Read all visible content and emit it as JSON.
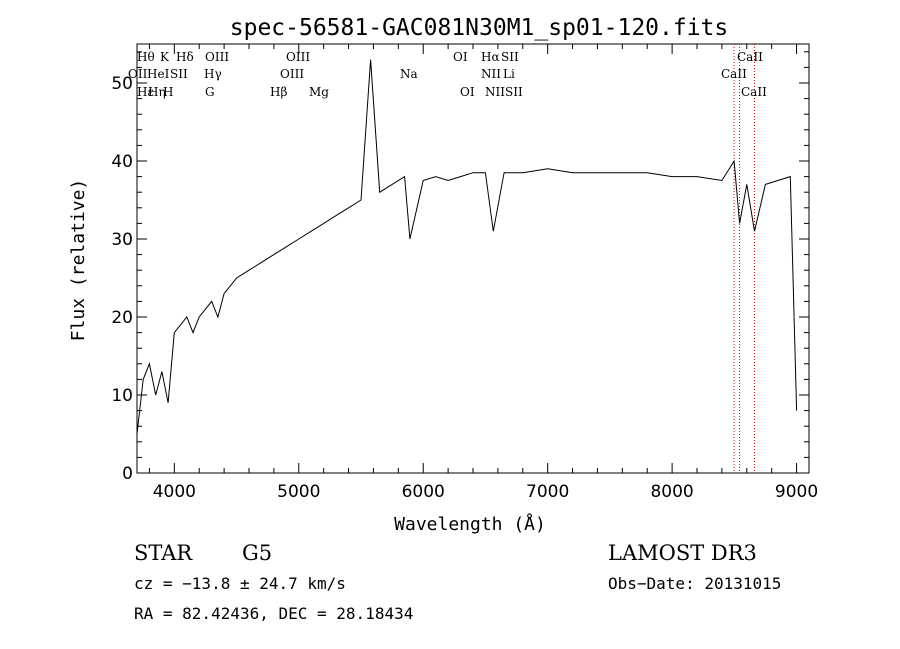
{
  "chart_data": {
    "type": "line",
    "title": "spec-56581-GAC081N30M1_sp01-120.fits",
    "xlabel": "Wavelength (Å)",
    "ylabel": "Flux (relative)",
    "xlim": [
      3700,
      9100
    ],
    "ylim": [
      0,
      55
    ],
    "xticks": [
      4000,
      5000,
      6000,
      7000,
      8000,
      9000
    ],
    "xtick_labels": [
      "4000",
      "5000",
      "6000",
      "7000",
      "8000",
      "9000"
    ],
    "yticks": [
      0,
      10,
      20,
      30,
      40,
      50
    ],
    "ytick_labels": [
      "0",
      "10",
      "20",
      "30",
      "40",
      "50"
    ],
    "grid": false,
    "series": [
      {
        "name": "flux",
        "color": "#000000",
        "x": [
          3700,
          3750,
          3800,
          3850,
          3900,
          3950,
          4000,
          4050,
          4100,
          4150,
          4200,
          4250,
          4300,
          4350,
          4400,
          4500,
          4600,
          4700,
          4800,
          4900,
          5000,
          5100,
          5200,
          5300,
          5400,
          5500,
          5577,
          5650,
          5750,
          5850,
          5893,
          6000,
          6100,
          6200,
          6300,
          6400,
          6500,
          6563,
          6650,
          6800,
          7000,
          7200,
          7400,
          7600,
          7800,
          8000,
          8200,
          8400,
          8498,
          8542,
          8600,
          8662,
          8750,
          8850,
          8950,
          9000
        ],
        "y": [
          5,
          12,
          14,
          10,
          13,
          9,
          18,
          19,
          20,
          18,
          20,
          21,
          22,
          20,
          23,
          25,
          26,
          27,
          28,
          29,
          30,
          31,
          32,
          33,
          34,
          35,
          53,
          36,
          37,
          38,
          30,
          37.5,
          38,
          37.5,
          38,
          38.5,
          38.5,
          31,
          38.5,
          38.5,
          39,
          38.5,
          38.5,
          38.5,
          38.5,
          38,
          38,
          37.5,
          40,
          32,
          37,
          31,
          37,
          37.5,
          38,
          8
        ]
      }
    ],
    "spectral_lines": [
      {
        "name": "CaII",
        "wavelength": 8498,
        "label_row": 0
      },
      {
        "name": "CaII",
        "wavelength": 8542,
        "label_row": 1
      },
      {
        "name": "CaII",
        "wavelength": 8662,
        "label_row": 2
      }
    ]
  },
  "line_labels": {
    "row0": [
      "Hθ",
      "K",
      "Hδ",
      "OIII",
      "OIII",
      "OI",
      "Hα",
      "SII",
      "CaII"
    ],
    "row1": [
      "OII",
      "HeI",
      "SII",
      "Hγ",
      "OIII",
      "NII",
      "Li",
      "CaII"
    ],
    "row2": [
      "Hε",
      "Hη",
      "H",
      "G",
      "Hβ",
      "Mg",
      "Na",
      "OI",
      "NII",
      "SII",
      "CaII"
    ]
  },
  "info": {
    "class": "STAR",
    "subclass": "G5",
    "survey": "LAMOST DR3",
    "cz": "cz = −13.8 ± 24.7 km/s",
    "obs_date": "Obs−Date: 20131015",
    "coords": "RA =  82.42436, DEC =  28.18434"
  },
  "colors": {
    "spectrum": "#000000",
    "line_marker": "#cc0000",
    "frame": "#000000"
  }
}
